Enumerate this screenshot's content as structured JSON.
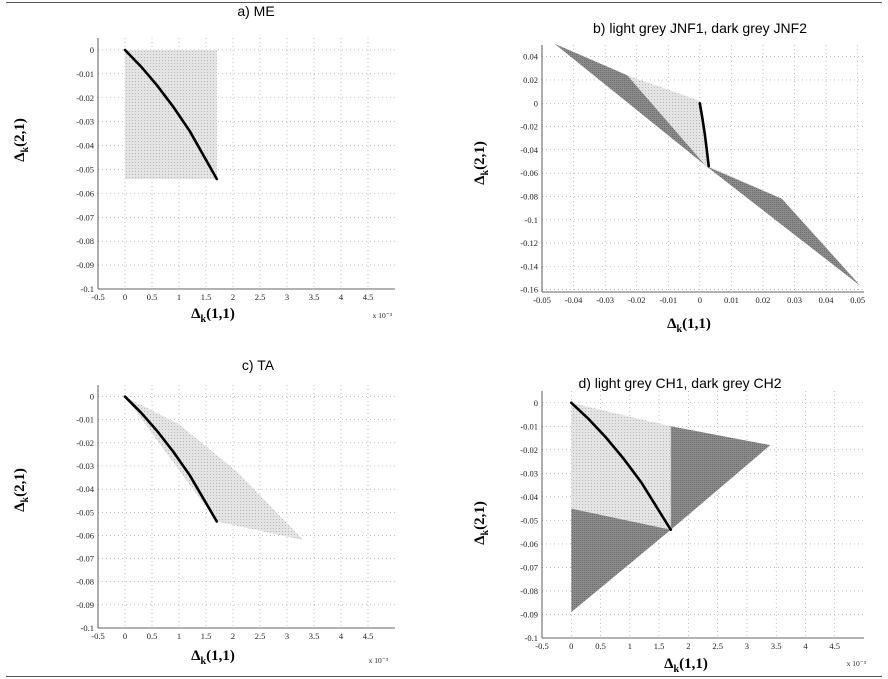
{
  "figure": {
    "background": "#ffffff",
    "colors": {
      "light_grey": "#d6d6d6",
      "dark_grey": "#8c8c8c",
      "curve": "#000000",
      "grid": "#9a9a9a"
    }
  },
  "chart_data": [
    {
      "id": "a",
      "type": "area",
      "title": "a) ME",
      "xlabel": "Δk(1,1)",
      "ylabel": "Δk(2,1)",
      "x_multiplier": "x 10⁻³",
      "xlim": [
        -0.5,
        5
      ],
      "ylim": [
        -0.1,
        0.005
      ],
      "xticks": [
        -0.5,
        0,
        0.5,
        1,
        1.5,
        2,
        2.5,
        3,
        3.5,
        4,
        4.5
      ],
      "xticklabels": [
        "-0.5",
        "0",
        "0.5",
        "1",
        "1.5",
        "2",
        "2.5",
        "3",
        "3.5",
        "4",
        "4.5"
      ],
      "yticks": [
        0,
        -0.01,
        -0.02,
        -0.03,
        -0.04,
        -0.05,
        -0.06,
        -0.07,
        -0.08,
        -0.09,
        -0.1
      ],
      "yticklabels": [
        "0",
        "-0.01",
        "-0.02",
        "-0.03",
        "-0.04",
        "-0.05",
        "-0.06",
        "-0.07",
        "-0.08",
        "-0.09",
        "-0.1"
      ],
      "grid": true,
      "regions": [
        {
          "shade": "light",
          "points": [
            [
              0,
              0
            ],
            [
              1.7,
              0
            ],
            [
              1.7,
              -0.054
            ],
            [
              0,
              -0.054
            ]
          ]
        }
      ],
      "curve": {
        "x": [
          0,
          0.3,
          0.6,
          0.9,
          1.2,
          1.5,
          1.7
        ],
        "y": [
          0,
          -0.007,
          -0.015,
          -0.024,
          -0.034,
          -0.046,
          -0.054
        ]
      }
    },
    {
      "id": "b",
      "type": "area",
      "title": "b) light grey JNF1, dark grey JNF2",
      "xlabel": "Δk(1,1)",
      "ylabel": "Δk(2,1)",
      "x_multiplier": "",
      "xlim": [
        -0.05,
        0.052
      ],
      "ylim": [
        -0.162,
        0.05
      ],
      "xticks": [
        -0.05,
        -0.04,
        -0.03,
        -0.02,
        -0.01,
        0,
        0.01,
        0.02,
        0.03,
        0.04,
        0.05
      ],
      "xticklabels": [
        "-0.05",
        "-0.04",
        "-0.03",
        "-0.02",
        "-0.01",
        "0",
        "0.01",
        "0.02",
        "0.03",
        "0.04",
        "0.05"
      ],
      "yticks": [
        0.04,
        0.02,
        0,
        -0.02,
        -0.04,
        -0.06,
        -0.08,
        -0.1,
        -0.12,
        -0.14,
        -0.16
      ],
      "yticklabels": [
        "0.04",
        "0.02",
        "0",
        "-0.02",
        "-0.04",
        "-0.06",
        "-0.08",
        "-0.1",
        "-0.12",
        "-0.14",
        "-0.16"
      ],
      "grid": true,
      "regions": [
        {
          "shade": "light",
          "points": [
            [
              -0.023,
              0.024
            ],
            [
              0,
              0.002
            ],
            [
              0.0028,
              -0.054
            ],
            [
              0.026,
              -0.082
            ],
            [
              0.002,
              -0.054
            ]
          ]
        },
        {
          "shade": "dark",
          "points": [
            [
              -0.046,
              0.051
            ],
            [
              -0.023,
              0.024
            ],
            [
              0.002,
              -0.054
            ],
            [
              0.026,
              -0.082
            ],
            [
              0.051,
              -0.157
            ],
            [
              0.003,
              -0.056
            ]
          ]
        }
      ],
      "curve": {
        "x": [
          0,
          0.0008,
          0.0016,
          0.0022,
          0.0028
        ],
        "y": [
          0,
          -0.013,
          -0.027,
          -0.04,
          -0.054
        ]
      }
    },
    {
      "id": "c",
      "type": "area",
      "title": "c) TA",
      "xlabel": "Δk(1,1)",
      "ylabel": "Δk(2,1)",
      "x_multiplier": "x 10⁻³",
      "xlim": [
        -0.5,
        5
      ],
      "ylim": [
        -0.1,
        0.005
      ],
      "xticks": [
        -0.5,
        0,
        0.5,
        1,
        1.5,
        2,
        2.5,
        3,
        3.5,
        4,
        4.5
      ],
      "xticklabels": [
        "-0.5",
        "0",
        "0.5",
        "1",
        "1.5",
        "2",
        "2.5",
        "3",
        "3.5",
        "4",
        "4.5"
      ],
      "yticks": [
        0,
        -0.01,
        -0.02,
        -0.03,
        -0.04,
        -0.05,
        -0.06,
        -0.07,
        -0.08,
        -0.09,
        -0.1
      ],
      "yticklabels": [
        "0",
        "-0.01",
        "-0.02",
        "-0.03",
        "-0.04",
        "-0.05",
        "-0.06",
        "-0.07",
        "-0.08",
        "-0.09",
        "-0.1"
      ],
      "grid": true,
      "regions": [
        {
          "shade": "light",
          "points": [
            [
              0,
              0
            ],
            [
              1.0,
              -0.012
            ],
            [
              2.1,
              -0.033
            ],
            [
              3.3,
              -0.062
            ],
            [
              1.7,
              -0.054
            ]
          ]
        }
      ],
      "curve": {
        "x": [
          0,
          0.3,
          0.6,
          0.9,
          1.2,
          1.5,
          1.7
        ],
        "y": [
          0,
          -0.007,
          -0.015,
          -0.024,
          -0.034,
          -0.046,
          -0.054
        ]
      }
    },
    {
      "id": "d",
      "type": "area",
      "title": "d) light grey CH1, dark grey CH2",
      "xlabel": "Δk(1,1)",
      "ylabel": "Δk(2,1)",
      "x_multiplier": "x 10⁻³",
      "xlim": [
        -0.5,
        5
      ],
      "ylim": [
        -0.1,
        0.005
      ],
      "xticks": [
        -0.5,
        0,
        0.5,
        1,
        1.5,
        2,
        2.5,
        3,
        3.5,
        4,
        4.5
      ],
      "xticklabels": [
        "-0.5",
        "0",
        "0.5",
        "1",
        "1.5",
        "2",
        "2.5",
        "3",
        "3.5",
        "4",
        "4.5"
      ],
      "yticks": [
        0,
        -0.01,
        -0.02,
        -0.03,
        -0.04,
        -0.05,
        -0.06,
        -0.07,
        -0.08,
        -0.09,
        -0.1
      ],
      "yticklabels": [
        "0",
        "-0.01",
        "-0.02",
        "-0.03",
        "-0.04",
        "-0.05",
        "-0.06",
        "-0.07",
        "-0.08",
        "-0.09",
        "-0.1"
      ],
      "grid": true,
      "regions": [
        {
          "shade": "light",
          "points": [
            [
              0,
              0
            ],
            [
              1.7,
              -0.01
            ],
            [
              1.7,
              -0.054
            ],
            [
              0,
              -0.045
            ]
          ]
        },
        {
          "shade": "dark",
          "points": [
            [
              1.7,
              -0.01
            ],
            [
              3.4,
              -0.018
            ],
            [
              1.7,
              -0.054
            ]
          ]
        },
        {
          "shade": "dark",
          "points": [
            [
              0,
              -0.045
            ],
            [
              1.7,
              -0.054
            ],
            [
              0,
              -0.089
            ]
          ]
        }
      ],
      "curve": {
        "x": [
          0,
          0.3,
          0.6,
          0.9,
          1.2,
          1.5,
          1.7
        ],
        "y": [
          0,
          -0.007,
          -0.015,
          -0.024,
          -0.034,
          -0.046,
          -0.054
        ]
      }
    }
  ]
}
